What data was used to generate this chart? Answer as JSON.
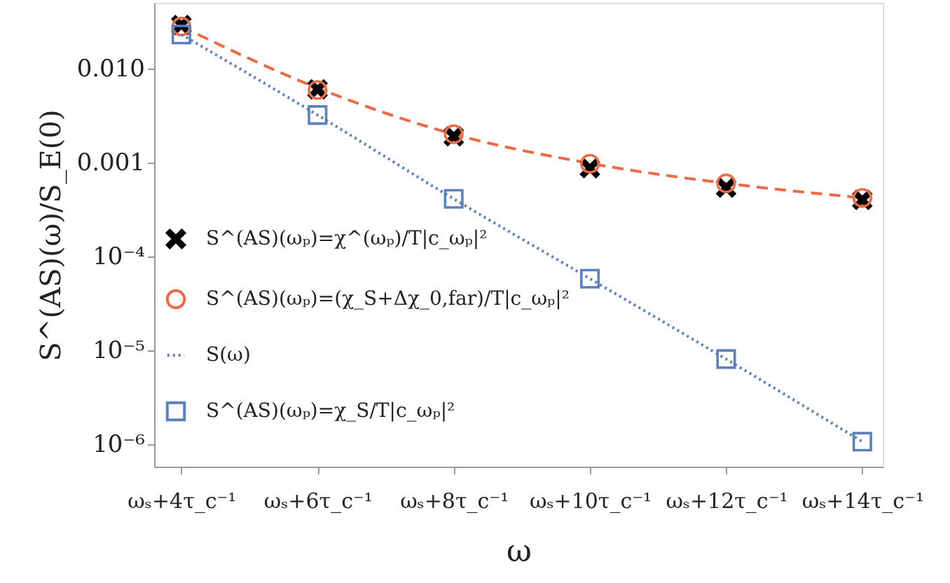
{
  "chart_data": {
    "type": "scatter",
    "xlabel": "ω",
    "ylabel": "S^(AS)(ω)/S_E(0)",
    "log": "y",
    "grid": false,
    "legend": "bottom left",
    "categories": [
      "ωₛ+4τ_c⁻¹",
      "ωₛ+6τ_c⁻¹",
      "ωₛ+8τ_c⁻¹",
      "ωₛ+10τ_c⁻¹",
      "ωₛ+12τ_c⁻¹",
      "ωₛ+14τ_c⁻¹"
    ],
    "ylim": [
      5.8e-07,
      0.05
    ],
    "yticks": [
      {
        "value": 0.01,
        "label": "0.010"
      },
      {
        "value": 0.001,
        "label": "0.001"
      },
      {
        "value": 0.0001,
        "label": "10⁻⁴"
      },
      {
        "value": 1e-05,
        "label": "10⁻⁵"
      },
      {
        "value": 1e-06,
        "label": "10⁻⁶"
      }
    ],
    "series": [
      {
        "type": "line",
        "line_style": "dashed",
        "marker": "none",
        "color": "#ee6a45",
        "values": [
          0.028,
          0.0062,
          0.002,
          0.00098,
          0.0006,
          0.00042
        ]
      },
      {
        "name": "S^(AS)(ωₚ)=χ^(ωₚ)/T|c_ωₚ|²",
        "marker": "cross",
        "color": "#000000",
        "values": [
          0.029,
          0.006,
          0.0019,
          0.00087,
          0.00054,
          0.0004
        ]
      },
      {
        "name": "S^(AS)(ωₚ)=(χ_S+Δχ_0,far)/T|c_ωₚ|²",
        "marker": "circle",
        "color": "#ee6a45",
        "values": [
          0.028,
          0.0059,
          0.002,
          0.00097,
          0.0006,
          0.00042
        ]
      },
      {
        "name": "S(ω)",
        "type": "line",
        "line_style": "dotted",
        "marker": "none",
        "color": "#5b80bf",
        "values": [
          0.023,
          0.0032,
          0.00041,
          5.8e-05,
          8.1e-06,
          1.07e-06
        ]
      },
      {
        "name": "S^(AS)(ωₚ)=χ_S/T|c_ωₚ|²",
        "marker": "square",
        "color": "#5b80bf",
        "values": [
          0.023,
          0.0032,
          0.00041,
          5.8e-05,
          8.1e-06,
          1.07e-06
        ]
      }
    ]
  }
}
